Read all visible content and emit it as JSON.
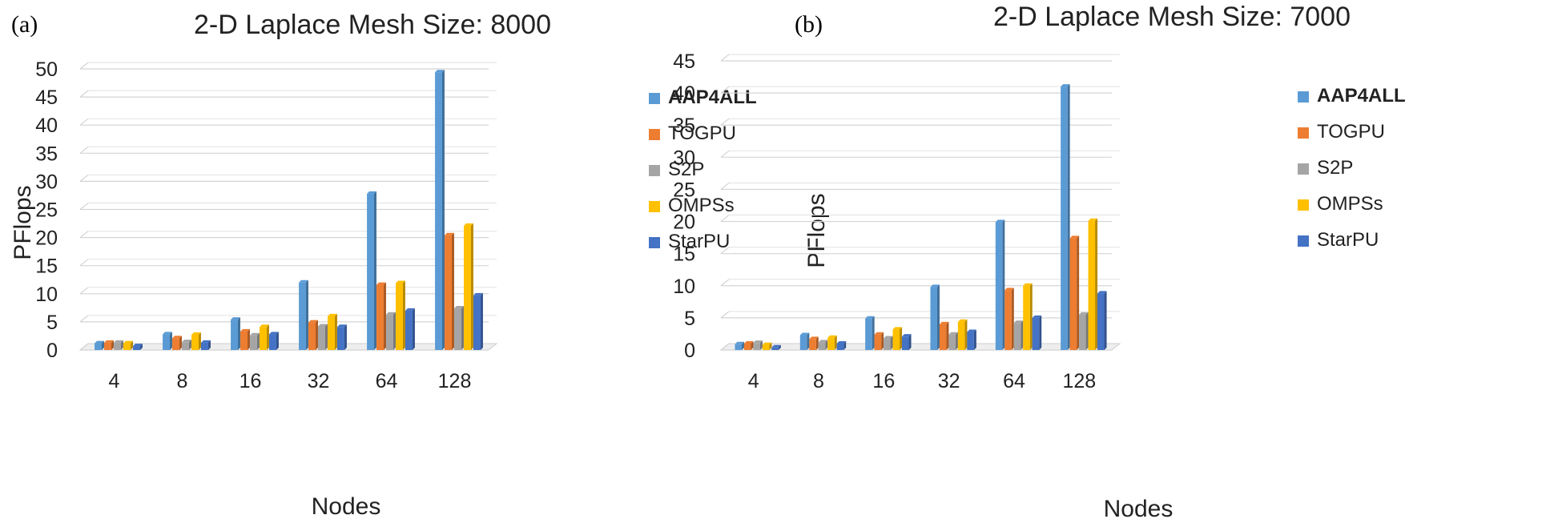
{
  "chart_data": [
    {
      "panel": "(a)",
      "type": "bar",
      "title": "2-D Laplace Mesh Size: 8000",
      "xlabel": "Nodes",
      "ylabel": "PFlops",
      "ylim": [
        0,
        50
      ],
      "yticks": [
        "0",
        "5",
        "10",
        "15",
        "20",
        "25",
        "30",
        "35",
        "40",
        "45",
        "50"
      ],
      "categories": [
        "4",
        "8",
        "16",
        "32",
        "64",
        "128"
      ],
      "series": [
        {
          "name": "AAP4ALL",
          "color": "#5B9BD5",
          "values": [
            1.2,
            2.8,
            5.4,
            12.0,
            27.8,
            49.4
          ]
        },
        {
          "name": "TOGPU",
          "color": "#ED7D31",
          "values": [
            1.3,
            2.1,
            3.3,
            4.9,
            11.6,
            20.4
          ]
        },
        {
          "name": "S2P",
          "color": "#A5A5A5",
          "values": [
            1.3,
            1.4,
            2.6,
            4.2,
            6.3,
            7.4
          ]
        },
        {
          "name": "OMPSs",
          "color": "#FFC000",
          "values": [
            1.2,
            2.7,
            4.1,
            6.0,
            11.9,
            22.1
          ]
        },
        {
          "name": "StarPU",
          "color": "#4472C4",
          "values": [
            0.7,
            1.3,
            2.8,
            4.1,
            7.0,
            9.7
          ]
        }
      ]
    },
    {
      "panel": "(b)",
      "type": "bar",
      "title": "2-D Laplace Mesh Size: 7000",
      "xlabel": "Nodes",
      "ylabel": "PFlops",
      "ylim": [
        0,
        45
      ],
      "yticks": [
        "0",
        "5",
        "10",
        "15",
        "20",
        "25",
        "30",
        "35",
        "40",
        "45"
      ],
      "categories": [
        "4",
        "8",
        "16",
        "32",
        "64",
        "128"
      ],
      "series": [
        {
          "name": "AAP4ALL",
          "color": "#5B9BD5",
          "values": [
            0.9,
            2.3,
            4.9,
            9.8,
            19.9,
            41.0
          ]
        },
        {
          "name": "TOGPU",
          "color": "#ED7D31",
          "values": [
            1.0,
            1.7,
            2.4,
            4.0,
            9.3,
            17.4
          ]
        },
        {
          "name": "S2P",
          "color": "#A5A5A5",
          "values": [
            1.1,
            1.2,
            1.8,
            2.4,
            4.2,
            5.5
          ]
        },
        {
          "name": "OMPSs",
          "color": "#FFC000",
          "values": [
            0.8,
            1.9,
            3.2,
            4.4,
            10.0,
            20.1
          ]
        },
        {
          "name": "StarPU",
          "color": "#4472C4",
          "values": [
            0.4,
            1.0,
            2.1,
            2.8,
            5.0,
            8.8
          ]
        }
      ]
    }
  ]
}
